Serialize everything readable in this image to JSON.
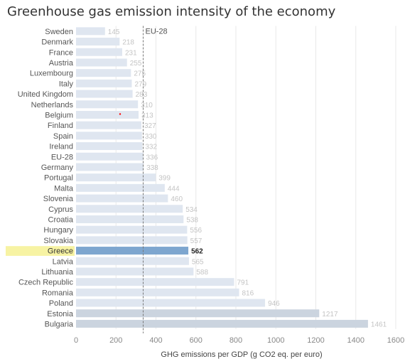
{
  "title": "Greenhouse gas emission intensity of the economy",
  "chart_data": {
    "type": "bar",
    "orientation": "horizontal",
    "title": "Greenhouse gas emission intensity of the economy",
    "xlabel": "GHG emissions per GDP (g CO2 eq. per euro)",
    "ylabel": "",
    "xlim": [
      0,
      1600
    ],
    "xticks": [
      "0",
      "200",
      "400",
      "600",
      "800",
      "1000",
      "1200",
      "1400",
      "1600"
    ],
    "grid": true,
    "categories": [
      "Sweden",
      "Denmark",
      "France",
      "Austria",
      "Luxembourg",
      "Italy",
      "United Kingdom",
      "Netherlands",
      "Belgium",
      "Finland",
      "Spain",
      "Ireland",
      "EU-28",
      "Germany",
      "Portugal",
      "Malta",
      "Slovenia",
      "Cyprus",
      "Croatia",
      "Hungary",
      "Slovakia",
      "Greece",
      "Latvia",
      "Lithuania",
      "Czech Republic",
      "Romania",
      "Poland",
      "Estonia",
      "Bulgaria"
    ],
    "values": [
      145,
      218,
      231,
      255,
      275,
      279,
      283,
      310,
      313,
      327,
      330,
      332,
      336,
      338,
      399,
      444,
      460,
      534,
      538,
      556,
      557,
      562,
      565,
      588,
      791,
      816,
      946,
      1217,
      1461
    ],
    "value_labels": [
      "145",
      "218",
      "231",
      "255",
      "275",
      "279",
      "283",
      "310",
      "313",
      "327",
      "330",
      "332",
      "336",
      "338",
      "399",
      "444",
      "460",
      "534",
      "538",
      "556",
      "557",
      "562",
      "565",
      "588",
      "791",
      "816",
      "946",
      "1217",
      "1461"
    ],
    "highlight": "Greece",
    "reference_line": {
      "label": "EU-28",
      "value": 336
    },
    "colors": {
      "bar": "#dfe6f0",
      "bar_dark": "#cbd4df",
      "highlight_bar": "#7ea6cf",
      "highlight_band": "#f7f3a3",
      "grid": "#e8e8e8",
      "reference": "#777777",
      "marker": "#ff0000"
    }
  }
}
